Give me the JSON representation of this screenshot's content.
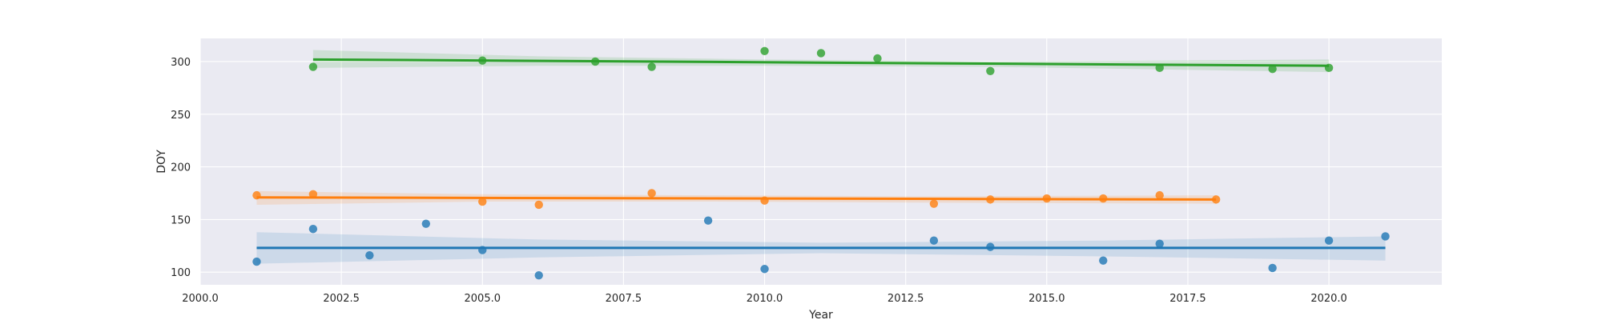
{
  "chart_data": {
    "type": "scatter",
    "title": "",
    "xlabel": "Year",
    "ylabel": "DOY",
    "xlim": [
      2000,
      2022
    ],
    "ylim": [
      88,
      322
    ],
    "xticks": [
      2000,
      2002.5,
      2005,
      2007.5,
      2010,
      2012.5,
      2015,
      2017.5,
      2020
    ],
    "xtick_labels": [
      "2000.0",
      "2002.5",
      "2005.0",
      "2007.5",
      "2010.0",
      "2012.5",
      "2015.0",
      "2017.5",
      "2020.0"
    ],
    "yticks": [
      100,
      150,
      200,
      250,
      300
    ],
    "ytick_labels": [
      "100",
      "150",
      "200",
      "250",
      "300"
    ],
    "grid": true,
    "legend": false,
    "series": [
      {
        "color": "#1f77b4",
        "points": [
          [
            2001,
            110
          ],
          [
            2002,
            141
          ],
          [
            2003,
            116
          ],
          [
            2004,
            146
          ],
          [
            2005,
            121
          ],
          [
            2006,
            97
          ],
          [
            2009,
            149
          ],
          [
            2010,
            103
          ],
          [
            2013,
            130
          ],
          [
            2014,
            124
          ],
          [
            2016,
            111
          ],
          [
            2017,
            127
          ],
          [
            2019,
            104
          ],
          [
            2020,
            130
          ],
          [
            2021,
            134
          ]
        ],
        "fit": {
          "x": [
            2001,
            2021
          ],
          "y": [
            123,
            123
          ]
        },
        "ci": {
          "x": [
            2001,
            2006,
            2011,
            2016,
            2021
          ],
          "upper": [
            138,
            131,
            128,
            130,
            134
          ],
          "lower": [
            108,
            114,
            118,
            115,
            111
          ]
        }
      },
      {
        "color": "#ff7f0e",
        "points": [
          [
            2001,
            173
          ],
          [
            2002,
            174
          ],
          [
            2005,
            167
          ],
          [
            2006,
            164
          ],
          [
            2008,
            175
          ],
          [
            2010,
            168
          ],
          [
            2013,
            165
          ],
          [
            2014,
            169
          ],
          [
            2015,
            170
          ],
          [
            2016,
            170
          ],
          [
            2017,
            173
          ],
          [
            2018,
            169
          ]
        ],
        "fit": {
          "x": [
            2001,
            2018
          ],
          "y": [
            171,
            169
          ]
        },
        "ci": {
          "x": [
            2001,
            2005,
            2009,
            2013,
            2018
          ],
          "upper": [
            177,
            174,
            173,
            172,
            173
          ],
          "lower": [
            164,
            167,
            167,
            166,
            165
          ]
        }
      },
      {
        "color": "#2ca02c",
        "points": [
          [
            2002,
            295
          ],
          [
            2005,
            301
          ],
          [
            2007,
            300
          ],
          [
            2008,
            295
          ],
          [
            2010,
            310
          ],
          [
            2011,
            308
          ],
          [
            2012,
            303
          ],
          [
            2014,
            291
          ],
          [
            2017,
            294
          ],
          [
            2019,
            293
          ],
          [
            2020,
            294
          ]
        ],
        "fit": {
          "x": [
            2002,
            2020
          ],
          "y": [
            302,
            296
          ]
        },
        "ci": {
          "x": [
            2002,
            2006,
            2010,
            2014,
            2020
          ],
          "upper": [
            311,
            305,
            302,
            300,
            302
          ],
          "lower": [
            294,
            296,
            296,
            295,
            290
          ]
        }
      }
    ]
  }
}
